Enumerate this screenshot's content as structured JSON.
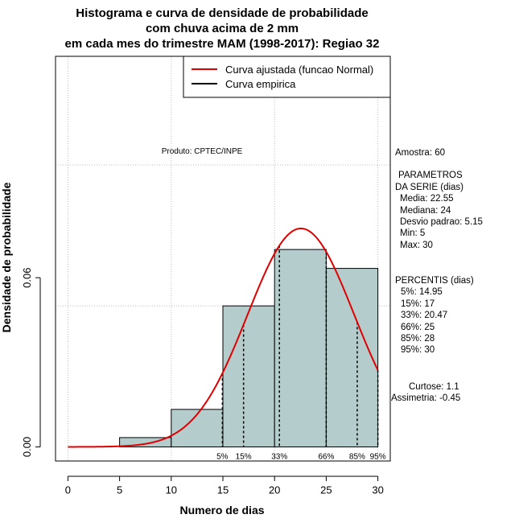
{
  "chart_data": {
    "type": "histogram",
    "title": [
      "Histograma e curva de densidade de probabilidade",
      "com chuva acima de 2 mm",
      "em cada mes do trimestre MAM (1998-2017): Regiao 32"
    ],
    "xlabel": "Numero de dias",
    "ylabel": "Densidade de probabilidade",
    "xlim": [
      -1.2,
      31.2
    ],
    "ylim": [
      -0.005,
      0.1385
    ],
    "x_ticks": [
      0,
      5,
      10,
      15,
      20,
      25,
      30
    ],
    "x_tick_labels": [
      "0",
      "5",
      "10",
      "15",
      "20",
      "25",
      "30"
    ],
    "y_ticks": [
      0.0,
      0.06
    ],
    "y_tick_labels": [
      "0.00",
      "0.06"
    ],
    "grid_x": [
      0,
      10,
      20,
      30
    ],
    "grid_y": [
      0.05,
      0.1
    ],
    "bins": [
      {
        "from": 5,
        "to": 10,
        "density": 0.0033
      },
      {
        "from": 10,
        "to": 15,
        "density": 0.0133
      },
      {
        "from": 15,
        "to": 20,
        "density": 0.05
      },
      {
        "from": 20,
        "to": 25,
        "density": 0.07
      },
      {
        "from": 25,
        "to": 30,
        "density": 0.0633
      }
    ],
    "normal_fit": {
      "mean": 22.55,
      "sd": 5.15,
      "x_from": 0,
      "x_to": 30
    },
    "percentile_lines": [
      {
        "label": "5%",
        "x": 14.95
      },
      {
        "label": "15%",
        "x": 17
      },
      {
        "label": "33%",
        "x": 20.47
      },
      {
        "label": "66%",
        "x": 25
      },
      {
        "label": "85%",
        "x": 28
      },
      {
        "label": "95%",
        "x": 30
      }
    ],
    "legend": [
      {
        "label": "Curva ajustada (funcao Normal)",
        "color": "#e00000"
      },
      {
        "label": "Curva empirica",
        "color": "#000000"
      }
    ],
    "legend_position": "top-right",
    "credit": "Produto: CPTEC/INPE",
    "colors": {
      "bar_fill": "#b4cccc",
      "curve": "#e00000",
      "grid": "#bbbbbb"
    }
  },
  "side_panel": {
    "amostra": "Amostra: 60",
    "param_title_1": "PARAMETROS",
    "param_title_2": "DA SERIE (dias)",
    "media": "Media: 22.55",
    "mediana": "Mediana: 24",
    "desvio": "Desvio padrao: 5.15",
    "min": "Min: 5",
    "max": "Max: 30",
    "perc_title": "PERCENTIS (dias)",
    "p5": "5%: 14.95",
    "p15": "15%: 17",
    "p33": "33%: 20.47",
    "p66": "66%: 25",
    "p85": "85%: 28",
    "p95": "95%: 30",
    "curtose": "Curtose: 1.1",
    "assimetria": "Assimetria: -0.45"
  }
}
